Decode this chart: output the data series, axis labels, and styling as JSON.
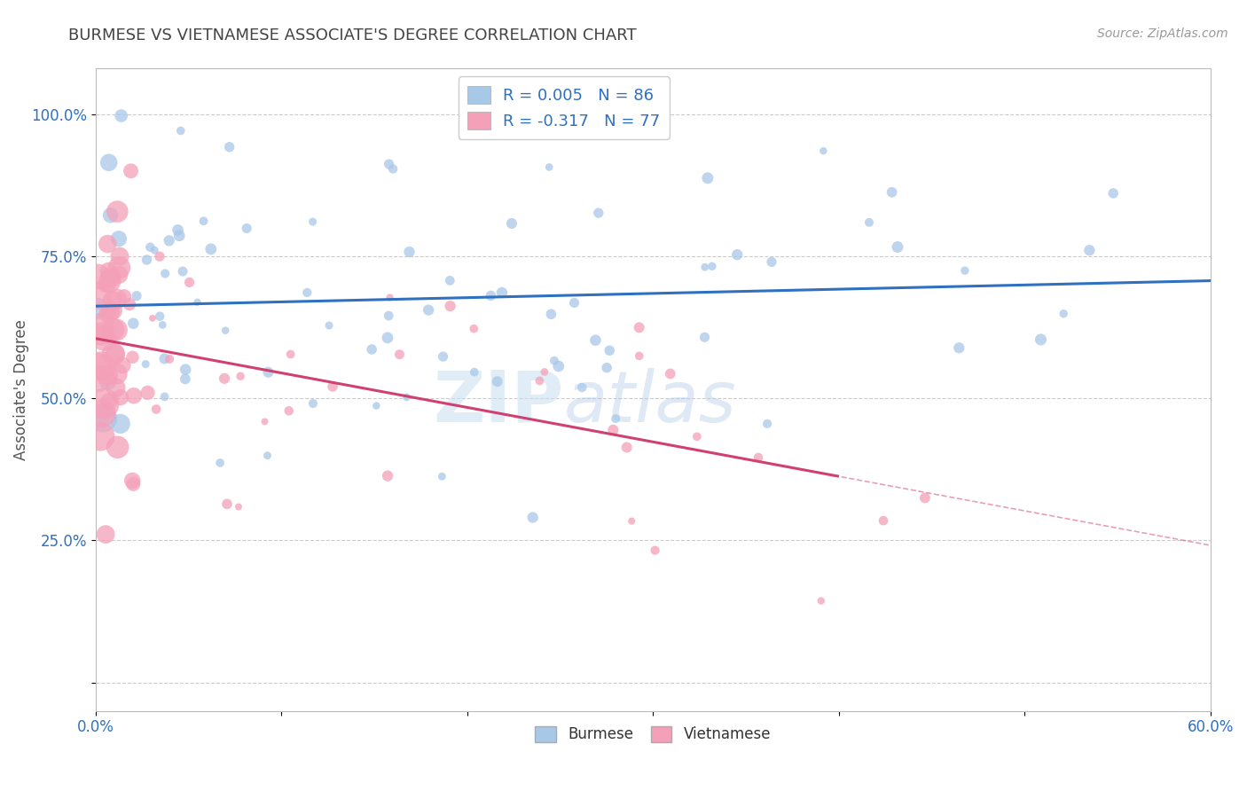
{
  "title": "BURMESE VS VIETNAMESE ASSOCIATE'S DEGREE CORRELATION CHART",
  "source_text": "Source: ZipAtlas.com",
  "xlabel_burmese": "Burmese",
  "xlabel_vietnamese": "Vietnamese",
  "ylabel": "Associate's Degree",
  "xmin": 0.0,
  "xmax": 0.6,
  "ymin": -0.05,
  "ymax": 1.08,
  "xticks": [
    0.0,
    0.1,
    0.2,
    0.3,
    0.4,
    0.5,
    0.6
  ],
  "xticklabels": [
    "0.0%",
    "",
    "",
    "",
    "",
    "",
    "60.0%"
  ],
  "yticks": [
    0.0,
    0.25,
    0.5,
    0.75,
    1.0
  ],
  "yticklabels": [
    "",
    "25.0%",
    "50.0%",
    "75.0%",
    "100.0%"
  ],
  "burmese_color": "#a8c8e8",
  "vietnamese_color": "#f4a0b8",
  "burmese_line_color": "#3070c0",
  "vietnamese_line_color": "#d04070",
  "burmese_R": 0.005,
  "burmese_N": 86,
  "vietnamese_R": -0.317,
  "vietnamese_N": 77,
  "watermark_zip": "ZIP",
  "watermark_atlas": "atlas",
  "legend_R_color": "#3070c0",
  "grid_color": "#cccccc",
  "title_color": "#444444",
  "burmese_line_y_intercept": 0.615,
  "vietnamese_line_y_intercept": 0.6,
  "vietnamese_line_slope": -0.6,
  "burmese_line_slope": 0.003,
  "vietnamese_solid_cutoff": 0.4,
  "dot_size": 40
}
